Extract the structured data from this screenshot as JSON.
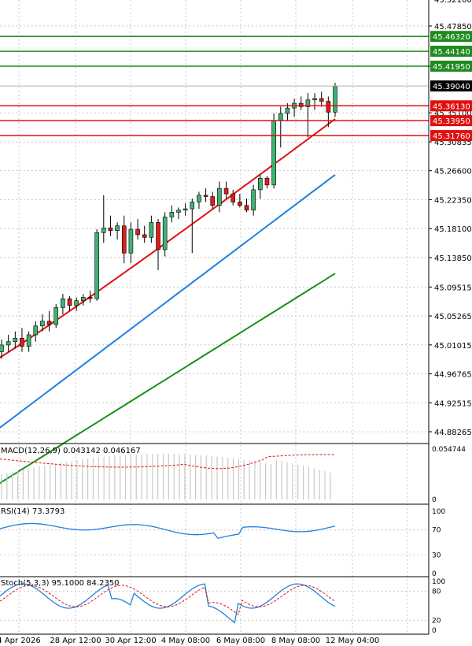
{
  "chart_data": [
    {
      "type": "candlestick",
      "panel": "price",
      "price_scale": [
        "45.47850",
        "45.41950",
        "45.35100",
        "45.30835",
        "45.26600",
        "45.22350",
        "45.18100",
        "45.13850",
        "45.09515",
        "45.05265",
        "45.01015",
        "44.96765",
        "44.92515",
        "44.88265"
      ],
      "price_scale_top_partial": "45.52100",
      "levels": [
        {
          "value": 45.4632,
          "label": "45.46320",
          "color": "#1e8a1e"
        },
        {
          "value": 45.4414,
          "label": "45.44140",
          "color": "#1e8a1e"
        },
        {
          "value": 45.4195,
          "label": "45.41950",
          "color": "#1e8a1e"
        },
        {
          "value": 45.3613,
          "label": "45.36130",
          "color": "#e01010"
        },
        {
          "value": 45.3395,
          "label": "45.33950",
          "color": "#e01010"
        },
        {
          "value": 45.3176,
          "label": "45.31760",
          "color": "#e01010"
        }
      ],
      "current_price": {
        "value": 45.3904,
        "label": "45.39040"
      },
      "ohlc": [
        [
          45.0,
          45.018,
          44.99,
          45.01
        ],
        [
          45.01,
          45.025,
          45.0,
          45.015
        ],
        [
          45.015,
          45.03,
          45.005,
          45.02
        ],
        [
          45.02,
          45.035,
          45.0,
          45.008
        ],
        [
          45.008,
          45.03,
          45.0,
          45.025
        ],
        [
          45.025,
          45.045,
          45.015,
          45.038
        ],
        [
          45.038,
          45.055,
          45.03,
          45.045
        ],
        [
          45.045,
          45.06,
          45.03,
          45.04
        ],
        [
          45.04,
          45.07,
          45.035,
          45.065
        ],
        [
          45.065,
          45.085,
          45.055,
          45.078
        ],
        [
          45.078,
          45.082,
          45.06,
          45.068
        ],
        [
          45.068,
          45.08,
          45.06,
          45.075
        ],
        [
          45.075,
          45.085,
          45.068,
          45.08
        ],
        [
          45.08,
          45.09,
          45.072,
          45.078
        ],
        [
          45.078,
          45.18,
          45.075,
          45.175
        ],
        [
          45.175,
          45.23,
          45.16,
          45.182
        ],
        [
          45.182,
          45.2,
          45.17,
          45.178
        ],
        [
          45.178,
          45.19,
          45.165,
          45.185
        ],
        [
          45.185,
          45.2,
          45.13,
          45.145
        ],
        [
          45.145,
          45.19,
          45.13,
          45.18
        ],
        [
          45.18,
          45.195,
          45.165,
          45.172
        ],
        [
          45.172,
          45.185,
          45.16,
          45.168
        ],
        [
          45.168,
          45.2,
          45.16,
          45.19
        ],
        [
          45.19,
          45.195,
          45.12,
          45.15
        ],
        [
          45.15,
          45.205,
          45.14,
          45.198
        ],
        [
          45.198,
          45.215,
          45.19,
          45.205
        ],
        [
          45.205,
          45.212,
          45.195,
          45.208
        ],
        [
          45.208,
          45.218,
          45.2,
          45.21
        ],
        [
          45.21,
          45.225,
          45.145,
          45.22
        ],
        [
          45.22,
          45.235,
          45.21,
          45.23
        ],
        [
          45.23,
          45.24,
          45.22,
          45.228
        ],
        [
          45.228,
          45.235,
          45.21,
          45.215
        ],
        [
          45.215,
          45.25,
          45.205,
          45.24
        ],
        [
          45.24,
          45.25,
          45.225,
          45.232
        ],
        [
          45.232,
          45.238,
          45.215,
          45.22
        ],
        [
          45.22,
          45.232,
          45.212,
          45.215
        ],
        [
          45.215,
          45.225,
          45.205,
          45.208
        ],
        [
          45.208,
          45.245,
          45.2,
          45.238
        ],
        [
          45.238,
          45.26,
          45.225,
          45.255
        ],
        [
          45.255,
          45.258,
          45.24,
          45.245
        ],
        [
          45.245,
          45.35,
          45.24,
          45.34
        ],
        [
          45.34,
          45.36,
          45.3,
          45.35
        ],
        [
          45.35,
          45.365,
          45.34,
          45.358
        ],
        [
          45.358,
          45.372,
          45.345,
          45.365
        ],
        [
          45.365,
          45.375,
          45.355,
          45.36
        ],
        [
          45.36,
          45.38,
          45.315,
          45.37
        ],
        [
          45.37,
          45.38,
          45.355,
          45.372
        ],
        [
          45.372,
          45.382,
          45.36,
          45.368
        ],
        [
          45.368,
          45.375,
          45.33,
          45.352
        ],
        [
          45.352,
          45.395,
          45.345,
          45.39
        ]
      ],
      "moving_averages": [
        {
          "color": "#e01010",
          "start": 44.985,
          "end": 45.342
        },
        {
          "color": "#2080e0",
          "start": 44.88,
          "end": 45.26
        },
        {
          "color": "#189018",
          "start": 44.8,
          "end": 45.115
        }
      ]
    },
    {
      "type": "bar",
      "panel": "macd",
      "label": "MACD(12,26,9) 0.043142 0.046167",
      "scale": [
        "0.054744",
        "0"
      ]
    },
    {
      "type": "line",
      "panel": "rsi",
      "label": "RSI(14) 73.3793",
      "scale": [
        "100",
        "70",
        "30",
        "0"
      ]
    },
    {
      "type": "line",
      "panel": "stoch",
      "label": "Stoch(5,3,3) 95.1000 84.2350",
      "scale": [
        "100",
        "80",
        "20",
        "0"
      ]
    }
  ],
  "x_labels": [
    "4 Apr 2026",
    "28 Apr 12:00",
    "30 Apr 12:00",
    "4 May 08:00",
    "6 May 08:00",
    "8 May 08:00",
    "12 May 04:00"
  ]
}
